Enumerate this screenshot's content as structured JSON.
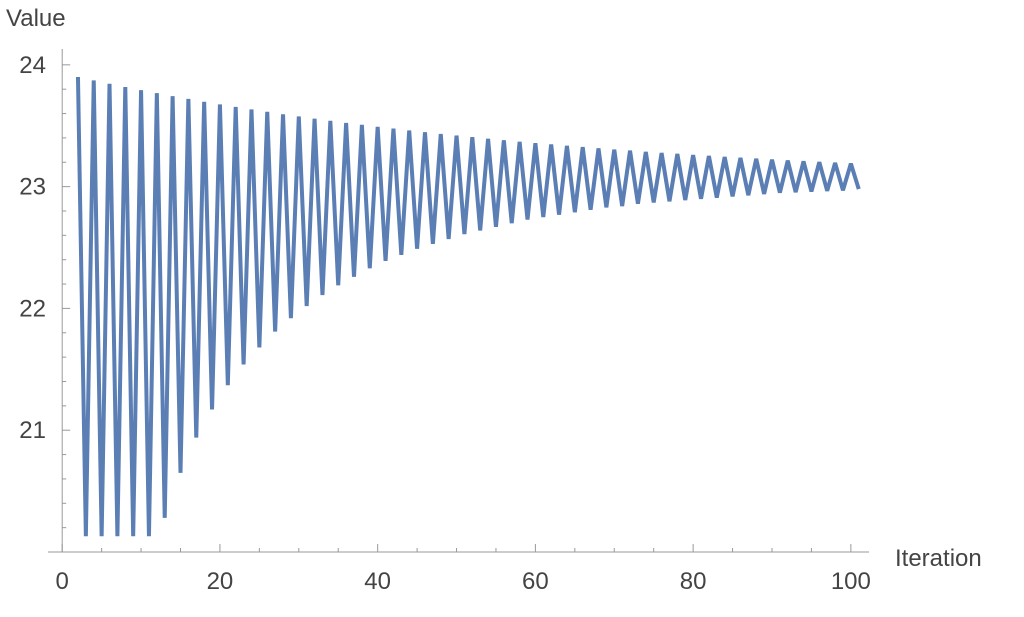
{
  "chart_data": {
    "type": "line",
    "y_axis_label": "Value",
    "x_axis_label": "Iteration",
    "x": [
      2,
      3,
      4,
      5,
      6,
      7,
      8,
      9,
      10,
      11,
      12,
      13,
      14,
      15,
      16,
      17,
      18,
      19,
      20,
      21,
      22,
      23,
      24,
      25,
      26,
      27,
      28,
      29,
      30,
      31,
      32,
      33,
      34,
      35,
      36,
      37,
      38,
      39,
      40,
      41,
      42,
      43,
      44,
      45,
      46,
      47,
      48,
      49,
      50,
      51,
      52,
      53,
      54,
      55,
      56,
      57,
      58,
      59,
      60,
      61,
      62,
      63,
      64,
      65,
      66,
      67,
      68,
      69,
      70,
      71,
      72,
      73,
      74,
      75,
      76,
      77,
      78,
      79,
      80,
      81,
      82,
      83,
      84,
      85,
      86,
      87,
      88,
      89,
      90,
      91,
      92,
      93,
      94,
      95,
      96,
      97,
      98,
      99,
      100,
      101
    ],
    "series": [
      {
        "color": "#5b7fb5",
        "values": [
          23.9,
          20.13,
          23.872,
          20.13,
          23.844,
          20.13,
          23.818,
          20.13,
          23.792,
          20.13,
          23.767,
          20.28,
          23.743,
          20.65,
          23.72,
          20.94,
          23.697,
          21.17,
          23.675,
          21.37,
          23.654,
          21.54,
          23.634,
          21.68,
          23.614,
          21.81,
          23.594,
          21.92,
          23.576,
          22.02,
          23.558,
          22.11,
          23.54,
          22.19,
          23.523,
          22.26,
          23.507,
          22.33,
          23.491,
          22.39,
          23.476,
          22.44,
          23.461,
          22.49,
          23.446,
          22.53,
          23.432,
          22.57,
          23.419,
          22.61,
          23.406,
          22.64,
          23.393,
          22.67,
          23.38,
          22.7,
          23.368,
          22.73,
          23.357,
          22.75,
          23.346,
          22.77,
          23.335,
          22.79,
          23.324,
          22.81,
          23.314,
          22.83,
          23.304,
          22.84,
          23.295,
          22.86,
          23.285,
          22.87,
          23.276,
          22.88,
          23.268,
          22.89,
          23.259,
          22.9,
          23.251,
          22.91,
          23.243,
          22.92,
          23.236,
          22.93,
          23.228,
          22.94,
          23.221,
          22.95,
          23.214,
          22.955,
          23.207,
          22.96,
          23.201,
          22.965,
          23.195,
          22.97,
          23.189,
          22.98
        ]
      }
    ],
    "xlim": [
      -1.8,
      102.3
    ],
    "ylim": [
      20,
      24.13
    ],
    "xticks": [
      0,
      20,
      40,
      60,
      80,
      100
    ],
    "yticks": [
      21,
      22,
      23,
      24
    ],
    "xminorticks": [
      5,
      10,
      15,
      25,
      30,
      35,
      45,
      50,
      55,
      65,
      70,
      75,
      85,
      90,
      95
    ],
    "yminorticks": [
      20.2,
      20.4,
      20.6,
      20.8,
      21.2,
      21.4,
      21.6,
      21.8,
      22.2,
      22.4,
      22.6,
      22.8,
      23.2,
      23.4,
      23.6,
      23.8,
      24.2
    ],
    "grid": false
  }
}
